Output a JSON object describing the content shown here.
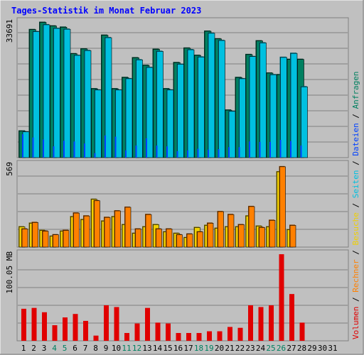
{
  "title": "Tages-Statistik im Monat Februar 2023",
  "colors": {
    "background": "#c0c0c0",
    "title": "#0000ff",
    "anfragen": "#008060",
    "dateien": "#0040ff",
    "seiten": "#00c0e0",
    "besuche": "#f0d000",
    "rechner": "#ff8000",
    "volumen": "#e00000",
    "weekend_tick": "#008060"
  },
  "chart_data": [
    {
      "type": "bar",
      "panel": "hits",
      "ylabel": "33691",
      "ymax": 33691,
      "categories": [
        "1",
        "2",
        "3",
        "4",
        "5",
        "6",
        "7",
        "8",
        "9",
        "10",
        "11",
        "12",
        "13",
        "14",
        "15",
        "16",
        "17",
        "18",
        "19",
        "20",
        "21",
        "22",
        "23",
        "24",
        "25",
        "26",
        "27",
        "28",
        "29",
        "30",
        "31"
      ],
      "weekend_days": [
        "4",
        "5",
        "11",
        "12",
        "18",
        "19",
        "25",
        "26"
      ],
      "series": [
        {
          "name": "Anfragen",
          "values": [
            6600,
            31800,
            33600,
            32700,
            32400,
            25800,
            27000,
            17100,
            30400,
            17100,
            19900,
            24800,
            22900,
            26900,
            17100,
            23600,
            27200,
            25400,
            31400,
            29500,
            11800,
            19900,
            25600,
            29000,
            21000,
            20600,
            24400,
            24400,
            null,
            null,
            null
          ]
        },
        {
          "name": "Dateien",
          "values": [
            5800,
            5000,
            4500,
            2800,
            4200,
            4000,
            3500,
            1100,
            5500,
            5200,
            1800,
            3000,
            4800,
            3000,
            2800,
            1600,
            1800,
            2200,
            2000,
            2100,
            2600,
            2600,
            4000,
            3900,
            3900,
            4400,
            4100,
            3000,
            null,
            null,
            null
          ]
        },
        {
          "name": "Seiten",
          "values": [
            6400,
            31300,
            33000,
            32100,
            31900,
            25400,
            26600,
            16800,
            29800,
            16800,
            19600,
            24300,
            22400,
            26400,
            16800,
            23200,
            26800,
            25000,
            30900,
            29100,
            11500,
            19600,
            25100,
            28500,
            20600,
            24900,
            25900,
            17600,
            null,
            null,
            null
          ]
        }
      ]
    },
    {
      "type": "bar",
      "panel": "visits",
      "ylabel": "569",
      "ymax": 569,
      "categories": [
        "1",
        "2",
        "3",
        "4",
        "5",
        "6",
        "7",
        "8",
        "9",
        "10",
        "11",
        "12",
        "13",
        "14",
        "15",
        "16",
        "17",
        "18",
        "19",
        "20",
        "21",
        "22",
        "23",
        "24",
        "25",
        "26",
        "27",
        "28",
        "29",
        "30",
        "31"
      ],
      "series": [
        {
          "name": "Besuche",
          "values": [
            140,
            165,
            115,
            75,
            110,
            210,
            190,
            330,
            180,
            210,
            155,
            95,
            140,
            155,
            105,
            95,
            65,
            135,
            150,
            130,
            140,
            140,
            215,
            145,
            140,
            520,
            120,
            null,
            null,
            null,
            null
          ]
        },
        {
          "name": "Rechner",
          "values": [
            125,
            170,
            110,
            85,
            115,
            235,
            215,
            320,
            205,
            250,
            275,
            125,
            225,
            125,
            125,
            85,
            90,
            105,
            165,
            245,
            225,
            155,
            280,
            135,
            185,
            555,
            150,
            null,
            null,
            null,
            null
          ]
        }
      ]
    },
    {
      "type": "bar",
      "panel": "volume",
      "ylabel": "100.05 MB",
      "ymax": 100.05,
      "categories": [
        "1",
        "2",
        "3",
        "4",
        "5",
        "6",
        "7",
        "8",
        "9",
        "10",
        "11",
        "12",
        "13",
        "14",
        "15",
        "16",
        "17",
        "18",
        "19",
        "20",
        "21",
        "22",
        "23",
        "24",
        "25",
        "26",
        "27",
        "28",
        "29",
        "30",
        "31"
      ],
      "series": [
        {
          "name": "Volumen",
          "values": [
            37,
            38,
            33,
            18,
            27,
            31,
            23,
            6,
            41,
            39,
            9,
            20,
            38,
            21,
            20,
            9,
            9,
            9,
            11,
            11,
            16,
            15,
            41,
            39,
            41,
            100,
            54,
            21,
            null,
            null,
            null
          ]
        }
      ]
    }
  ],
  "legend": [
    {
      "name": "Volumen",
      "color": "#e00000"
    },
    {
      "name": "Rechner",
      "color": "#ff8000"
    },
    {
      "name": "Besuche",
      "color": "#f0d000"
    },
    {
      "name": "Seiten",
      "color": "#00c0e0"
    },
    {
      "name": "Dateien",
      "color": "#0040ff"
    },
    {
      "name": "Anfragen",
      "color": "#008060"
    }
  ],
  "legend_separator": " / "
}
